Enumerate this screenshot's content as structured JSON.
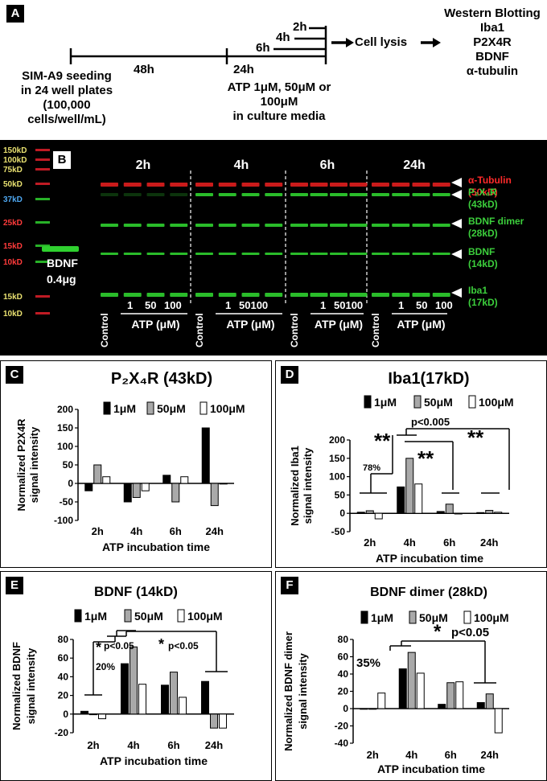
{
  "panel_a": {
    "label": "A",
    "seeding_lines": [
      "SIM-A9 seeding",
      "in 24 well plates",
      "(100,000",
      "cells/well/mL)"
    ],
    "t48": "48h",
    "t24": "24h",
    "t6": "6h",
    "t4": "4h",
    "t2": "2h",
    "treatment_lines": [
      "ATP 1μM, 50μM or",
      "100μM",
      "in culture media"
    ],
    "lysis": "Cell lysis",
    "wb_lines": [
      "Western Blotting",
      "Iba1",
      "P2X4R",
      "BDNF",
      "α-tubulin"
    ]
  },
  "panel_b": {
    "label": "B",
    "ladder": [
      {
        "text": "150kD",
        "color": "#e8e070"
      },
      {
        "text": "100kD",
        "color": "#e8e070"
      },
      {
        "text": "75kD",
        "color": "#e8e070"
      },
      {
        "text": "50kD",
        "color": "#e8e070"
      },
      {
        "text": "37kD",
        "color": "#4ea7f0"
      },
      {
        "text": "25kD",
        "color": "#ff3b3b"
      },
      {
        "text": "15kD",
        "color": "#ff3b3b"
      },
      {
        "text": "10kD",
        "color": "#ff3b3b"
      },
      {
        "text": "15kD",
        "color": "#e8e070"
      },
      {
        "text": "10kD",
        "color": "#e8e070"
      }
    ],
    "bdnf_std_lines": [
      "BDNF",
      "0.4μg"
    ],
    "times": [
      "2h",
      "4h",
      "6h",
      "24h"
    ],
    "band_labels": [
      {
        "lines": [
          "α-Tubulin",
          "(50kD)"
        ],
        "color": "#ff2a2a"
      },
      {
        "lines": [
          "P₂X₄R",
          "(43kD)"
        ],
        "color": "#3ccf3c"
      },
      {
        "lines": [
          "BDNF dimer",
          "(28kD)"
        ],
        "color": "#3ccf3c"
      },
      {
        "lines": [
          "BDNF",
          "(14kD)"
        ],
        "color": "#3ccf3c"
      },
      {
        "lines": [
          "Iba1",
          "(17kD)"
        ],
        "color": "#3ccf3c"
      }
    ],
    "control": "Control",
    "doses": [
      "1",
      "50",
      "100"
    ],
    "dose_compact": "50100",
    "atp": "ATP (μM)"
  },
  "legend": {
    "d1": "1μM",
    "d2": "50μM",
    "d3": "100μM"
  },
  "colors": {
    "d1": "#000000",
    "d2": "#a9a9a9",
    "d3": "#ffffff",
    "red_band": "#e01e1e",
    "green_band": "#2fd02f"
  },
  "chart_data": [
    {
      "id": "C",
      "type": "bar",
      "title": "P₂X₄R (43kD)",
      "ylabel": [
        "Normalized P2X4R",
        "signal intensity"
      ],
      "xlabel": "ATP incubation time",
      "categories": [
        "2h",
        "4h",
        "6h",
        "24h"
      ],
      "yticks": [
        -100,
        -50,
        0,
        50,
        100,
        150,
        200
      ],
      "ylim": [
        -100,
        200
      ],
      "series": [
        {
          "name": "1μM",
          "values": [
            -20,
            -50,
            22,
            150
          ]
        },
        {
          "name": "50μM",
          "values": [
            50,
            -38,
            -50,
            -60
          ]
        },
        {
          "name": "100μM",
          "values": [
            18,
            -20,
            18,
            0
          ]
        }
      ]
    },
    {
      "id": "D",
      "type": "bar",
      "title": "Iba1(17kD)",
      "ylabel": [
        "Normalized Iba1",
        "signal intensity"
      ],
      "xlabel": "ATP incubation time",
      "categories": [
        "2h",
        "4h",
        "6h",
        "24h"
      ],
      "yticks": [
        -50,
        0,
        50,
        100,
        150,
        200
      ],
      "ylim": [
        -50,
        200
      ],
      "series": [
        {
          "name": "1μM",
          "values": [
            3,
            72,
            5,
            2
          ]
        },
        {
          "name": "50μM",
          "values": [
            7,
            150,
            25,
            8
          ]
        },
        {
          "name": "100μM",
          "values": [
            -15,
            80,
            0,
            3
          ]
        }
      ],
      "annotations": {
        "stars": "**",
        "p": "p<0.005",
        "pct": "78%"
      }
    },
    {
      "id": "E",
      "type": "bar",
      "title": "BDNF (14kD)",
      "ylabel": [
        "Normalized BDNF",
        "signal intensity"
      ],
      "xlabel": "ATP incubation time",
      "categories": [
        "2h",
        "4h",
        "6h",
        "24h"
      ],
      "yticks": [
        -20,
        0,
        20,
        40,
        60,
        80
      ],
      "ylim": [
        -20,
        80
      ],
      "series": [
        {
          "name": "1μM",
          "values": [
            3,
            54,
            31,
            35
          ]
        },
        {
          "name": "50μM",
          "values": [
            0,
            72,
            45,
            -15
          ]
        },
        {
          "name": "100μM",
          "values": [
            -5,
            32,
            18,
            -15
          ]
        }
      ],
      "annotations": {
        "star": "*",
        "p": "p<0.05",
        "pct": "20%"
      }
    },
    {
      "id": "F",
      "type": "bar",
      "title": "BDNF dimer (28kD)",
      "ylabel": [
        "Normalized BDNF dimer",
        "signal intensity"
      ],
      "xlabel": "ATP incubation time",
      "categories": [
        "2h",
        "4h",
        "6h",
        "24h"
      ],
      "yticks": [
        -40,
        -20,
        0,
        20,
        40,
        60,
        80
      ],
      "ylim": [
        -40,
        80
      ],
      "series": [
        {
          "name": "1μM",
          "values": [
            0,
            46,
            5,
            7
          ]
        },
        {
          "name": "50μM",
          "values": [
            0,
            65,
            30,
            17
          ]
        },
        {
          "name": "100μM",
          "values": [
            18,
            41,
            31,
            -28
          ]
        }
      ],
      "annotations": {
        "star": "*",
        "p": "p<0.05",
        "pct": "35%"
      }
    }
  ]
}
